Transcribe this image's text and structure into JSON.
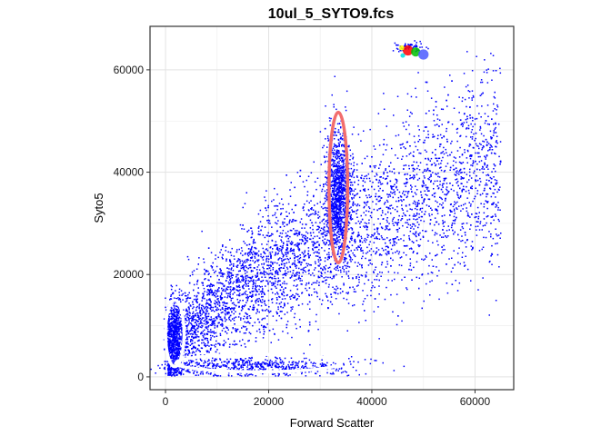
{
  "chart_data": {
    "type": "scatter",
    "title": "10ul_5_SYTO9.fcs",
    "xlabel": "Forward Scatter",
    "ylabel": "Syto5",
    "xlim": [
      -3000,
      67500
    ],
    "ylim": [
      -2500,
      68500
    ],
    "x_ticks": [
      0,
      20000,
      40000,
      60000
    ],
    "y_ticks": [
      0,
      20000,
      40000,
      60000
    ],
    "grid": true,
    "point_color": "#0000ff",
    "clusters": [
      {
        "x_range": [
          500,
          65000
        ],
        "y_range": [
          300,
          64000
        ],
        "trend": [
          [
            1000,
            5000
          ],
          [
            10000,
            14000
          ],
          [
            20000,
            21000
          ],
          [
            30000,
            26000
          ],
          [
            40000,
            30000
          ],
          [
            50000,
            36000
          ],
          [
            60000,
            40000
          ]
        ],
        "spread": 6000,
        "count": 5200
      },
      {
        "center": [
          33500,
          36000
        ],
        "sd": [
          1200,
          6000
        ],
        "count": 1100
      },
      {
        "center": [
          1800,
          8500
        ],
        "sd": [
          800,
          3500
        ],
        "count": 500
      },
      {
        "center": [
          18000,
          2000
        ],
        "sd": [
          9000,
          900
        ],
        "count": 600
      },
      {
        "center": [
          47000,
          64500
        ],
        "sd": [
          1500,
          500
        ],
        "count": 60
      }
    ],
    "annotations": [
      {
        "type": "ellipse",
        "center": [
          33500,
          37000
        ],
        "radii": [
          1800,
          14700
        ],
        "color": "#f26d6d"
      },
      {
        "type": "ellipse",
        "center": [
          1800,
          8500
        ],
        "radii": [
          1800,
          6500
        ],
        "color": "#ffffff"
      },
      {
        "type": "ellipse",
        "center": [
          18000,
          2700
        ],
        "radii": [
          16000,
          1700
        ],
        "color": "#ffffff"
      }
    ],
    "hotspot": [
      {
        "x": 47000,
        "y": 63800,
        "r": 1000,
        "color": "#ff0000"
      },
      {
        "x": 48500,
        "y": 63500,
        "r": 900,
        "color": "#00c000"
      },
      {
        "x": 50000,
        "y": 63000,
        "r": 1000,
        "color": "#4b5cff"
      },
      {
        "x": 45800,
        "y": 64300,
        "r": 500,
        "color": "#ffff00"
      },
      {
        "x": 46000,
        "y": 62800,
        "r": 450,
        "color": "#00e0e0"
      }
    ]
  }
}
